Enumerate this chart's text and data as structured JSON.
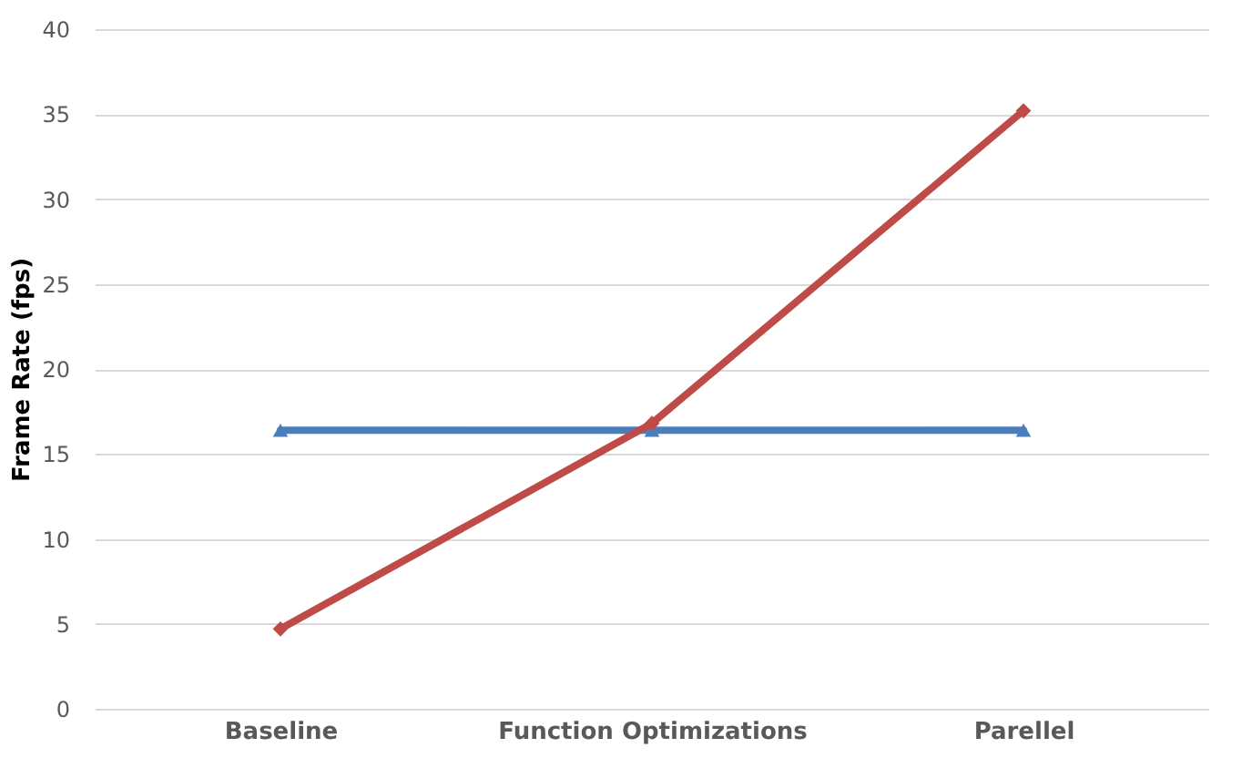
{
  "chart_data": {
    "type": "line",
    "ylabel": "Frame Rate (fps)",
    "categories": [
      "Baseline",
      "Function Optimizations",
      "Parellel"
    ],
    "series": [
      {
        "color": "#4a7ebb",
        "values": [
          16.4,
          16.4,
          16.4
        ],
        "marker": "triangle"
      },
      {
        "color": "#be4b48",
        "values": [
          4.7,
          16.8,
          35.2
        ],
        "marker": "diamond"
      }
    ],
    "ylim": [
      0,
      40
    ],
    "yticks": [
      0,
      5,
      10,
      15,
      20,
      25,
      30,
      35,
      40
    ],
    "grid": "y",
    "line_style": "solid"
  }
}
